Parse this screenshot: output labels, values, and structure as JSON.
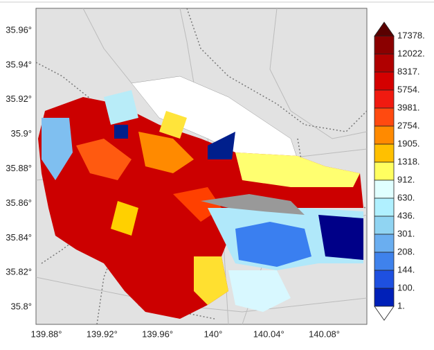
{
  "map": {
    "y_tick_labels": [
      "35.96°",
      "35.94°",
      "35.92°",
      "35.9°",
      "35.88°",
      "35.86°",
      "35.84°",
      "35.82°",
      "35.8°"
    ],
    "x_tick_labels": [
      "139.88°",
      "139.92°",
      "139.96°",
      "140°",
      "140.04°",
      "140.08°"
    ],
    "legend_labels": [
      "17378.",
      "12022.",
      "8317.",
      "5754.",
      "3981.",
      "2754.",
      "1905.",
      "1318.",
      "912.",
      "630.",
      "436.",
      "301.",
      "208.",
      "144.",
      "100.",
      "1."
    ]
  }
}
